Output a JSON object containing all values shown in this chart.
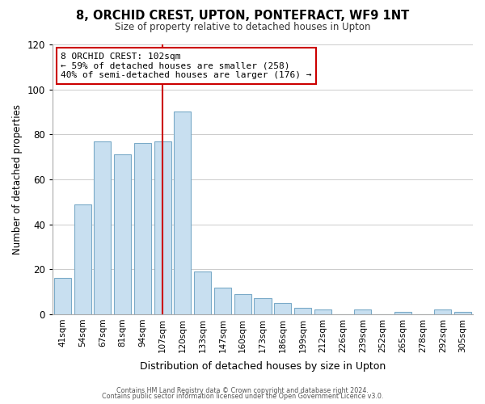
{
  "title": "8, ORCHID CREST, UPTON, PONTEFRACT, WF9 1NT",
  "subtitle": "Size of property relative to detached houses in Upton",
  "xlabel": "Distribution of detached houses by size in Upton",
  "ylabel": "Number of detached properties",
  "categories": [
    "41sqm",
    "54sqm",
    "67sqm",
    "81sqm",
    "94sqm",
    "107sqm",
    "120sqm",
    "133sqm",
    "147sqm",
    "160sqm",
    "173sqm",
    "186sqm",
    "199sqm",
    "212sqm",
    "226sqm",
    "239sqm",
    "252sqm",
    "265sqm",
    "278sqm",
    "292sqm",
    "305sqm"
  ],
  "values": [
    16,
    49,
    77,
    71,
    76,
    77,
    90,
    19,
    12,
    9,
    7,
    5,
    3,
    2,
    0,
    2,
    0,
    1,
    0,
    2,
    1
  ],
  "bar_color": "#c8dff0",
  "bar_edge_color": "#7aaac8",
  "highlight_index": 5,
  "highlight_line_color": "#cc0000",
  "ylim": [
    0,
    120
  ],
  "yticks": [
    0,
    20,
    40,
    60,
    80,
    100,
    120
  ],
  "annotation_title": "8 ORCHID CREST: 102sqm",
  "annotation_line1": "← 59% of detached houses are smaller (258)",
  "annotation_line2": "40% of semi-detached houses are larger (176) →",
  "annotation_box_color": "#ffffff",
  "annotation_box_edge": "#cc0000",
  "footer_line1": "Contains HM Land Registry data © Crown copyright and database right 2024.",
  "footer_line2": "Contains public sector information licensed under the Open Government Licence v3.0.",
  "background_color": "#ffffff",
  "grid_color": "#cccccc"
}
